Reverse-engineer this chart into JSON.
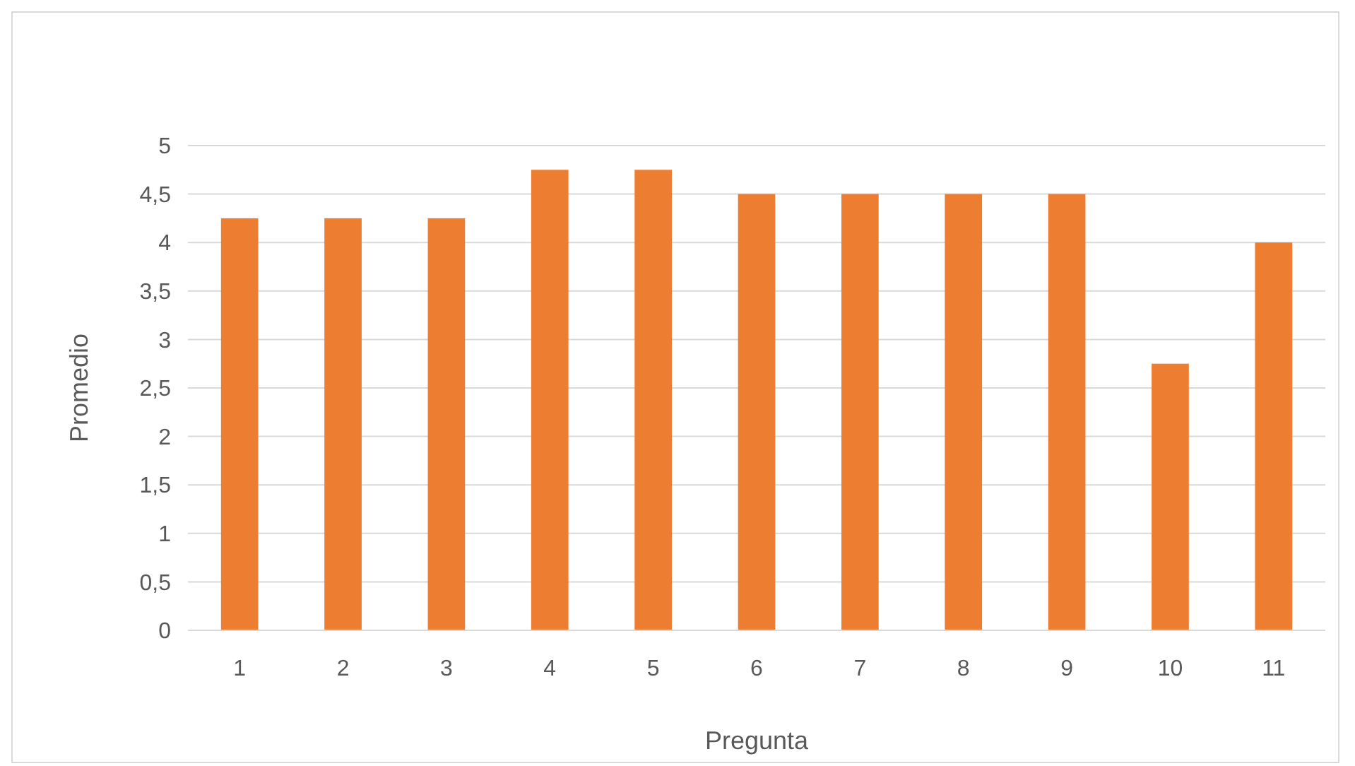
{
  "chart_data": {
    "type": "bar",
    "xlabel": "Pregunta",
    "ylabel": "Promedio",
    "categories": [
      "1",
      "2",
      "3",
      "4",
      "5",
      "6",
      "7",
      "8",
      "9",
      "10",
      "11"
    ],
    "values": [
      4.25,
      4.25,
      4.25,
      4.75,
      4.75,
      4.5,
      4.5,
      4.5,
      4.5,
      2.75,
      4
    ],
    "color": "#ed7d31",
    "ylim": [
      0,
      5
    ],
    "yticks": [
      0,
      {
        "value": 0.5,
        "label": "0,5"
      },
      1,
      {
        "value": 1.5,
        "label": "1,5"
      },
      2,
      {
        "value": 2.5,
        "label": "2,5"
      },
      3,
      {
        "value": 3.5,
        "label": "3,5"
      },
      4,
      {
        "value": 4.5,
        "label": "4,5"
      },
      5
    ],
    "grid": "y"
  }
}
